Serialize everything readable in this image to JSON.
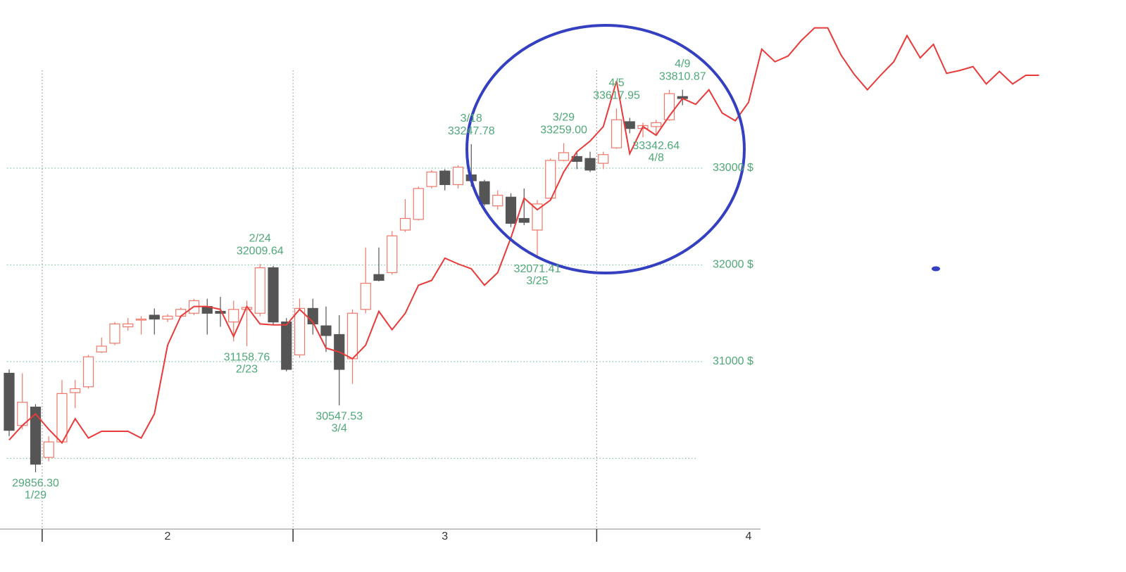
{
  "chart_data": {
    "type": "candlestick",
    "categories": [
      null,
      null,
      null,
      null,
      null,
      null,
      null,
      null,
      null,
      null,
      null,
      null,
      null,
      null,
      null,
      null,
      null,
      null,
      null,
      null,
      null,
      null,
      null,
      null,
      null,
      null,
      null,
      null,
      null,
      null,
      null,
      null,
      null,
      null,
      null,
      null,
      null,
      null,
      null,
      null,
      null,
      null,
      null,
      null,
      null,
      null,
      null,
      null,
      null,
      null,
      null,
      null,
      null,
      null,
      null,
      null,
      null,
      null,
      null,
      null,
      null,
      null,
      null,
      null,
      null,
      null,
      null,
      null,
      null,
      null,
      null,
      null,
      null,
      null,
      null,
      null,
      null,
      null,
      null
    ],
    "open": [
      30880,
      30340,
      30530,
      30010,
      30170,
      30680,
      30740,
      31100,
      31190,
      31360,
      31430,
      31480,
      31440,
      31470,
      31500,
      31570,
      31520,
      31410,
      31540,
      31500,
      31970,
      31410,
      31070,
      31550,
      31370,
      31280,
      31030,
      31540,
      31900,
      31920,
      32360,
      32470,
      32810,
      32970,
      32830,
      32930,
      32860,
      32610,
      32700,
      32480,
      32360,
      32690,
      33080,
      33120,
      33100,
      33050,
      33210,
      33480,
      33410,
      33430,
      33500,
      33740,
      null,
      null,
      null,
      null,
      null,
      null,
      null,
      null,
      null,
      null,
      null,
      null,
      null,
      null,
      null,
      null,
      null,
      null,
      null,
      null,
      null,
      null,
      null,
      null,
      null,
      null,
      null
    ],
    "high": [
      30920,
      30880,
      30560,
      30230,
      30810,
      30810,
      31070,
      31250,
      31410,
      31450,
      31470,
      31550,
      31490,
      31560,
      31650,
      31650,
      31670,
      31630,
      31630,
      32009.64,
      31990,
      31450,
      31650,
      31650,
      31570,
      31480,
      31540,
      32180,
      32180,
      32350,
      32680,
      32810,
      32980,
      32990,
      33030,
      33247.78,
      32880,
      32770,
      32740,
      32790,
      32670,
      33100,
      33259,
      33170,
      33170,
      33170,
      33617.95,
      33520,
      33470,
      33500,
      33810,
      33810.87,
      null,
      null,
      null,
      null,
      null,
      null,
      null,
      null,
      null,
      null,
      null,
      null,
      null,
      null,
      null,
      null,
      null,
      null,
      null,
      null,
      null,
      null,
      null,
      null,
      null,
      null,
      null
    ],
    "low": [
      30230,
      30300,
      29856.3,
      29970,
      30160,
      30520,
      30720,
      31090,
      31170,
      31320,
      31280,
      31280,
      31410,
      31450,
      31480,
      31280,
      31360,
      31210,
      31158.76,
      31470,
      31380,
      30900,
      31040,
      31280,
      31100,
      30547.53,
      30770,
      31500,
      31830,
      31900,
      32340,
      32460,
      32790,
      32770,
      32790,
      32810,
      32610,
      32570,
      32390,
      32410,
      32071.41,
      32670,
      33070,
      32990,
      32960,
      32990,
      33200,
      33360,
      33320,
      33342.64,
      33490,
      33650,
      null,
      null,
      null,
      null,
      null,
      null,
      null,
      null,
      null,
      null,
      null,
      null,
      null,
      null,
      null,
      null,
      null,
      null,
      null,
      null,
      null,
      null,
      null,
      null,
      null,
      null,
      null
    ],
    "close": [
      30290,
      30580,
      29940,
      30170,
      30670,
      30720,
      31050,
      31160,
      31390,
      31390,
      31440,
      31440,
      31470,
      31540,
      31630,
      31500,
      31500,
      31540,
      31560,
      31970,
      31410,
      30920,
      31550,
      31390,
      31270,
      30920,
      31500,
      31810,
      31840,
      32300,
      32480,
      32790,
      32960,
      32830,
      33010,
      32870,
      32630,
      32720,
      32430,
      32440,
      32630,
      33080,
      33160,
      33070,
      32980,
      33140,
      33500,
      33410,
      33440,
      33470,
      33770,
      33720,
      null,
      null,
      null,
      null,
      null,
      null,
      null,
      null,
      null,
      null,
      null,
      null,
      null,
      null,
      null,
      null,
      null,
      null,
      null,
      null,
      null,
      null,
      null,
      null,
      null,
      null,
      null
    ],
    "up_color": "#f07868",
    "down_color": "#555555",
    "line": {
      "color": "#e83a3a",
      "values": [
        30190,
        30340,
        30460,
        30300,
        30160,
        30410,
        30210,
        30280,
        30280,
        30280,
        30210,
        30460,
        31170,
        31470,
        31570,
        31570,
        31540,
        31260,
        31570,
        31390,
        31380,
        31380,
        31540,
        31410,
        31140,
        31100,
        31030,
        31170,
        31520,
        31330,
        31500,
        31790,
        31840,
        32070,
        32010,
        31960,
        31790,
        31920,
        32280,
        32690,
        32570,
        32670,
        32960,
        33170,
        33280,
        33430,
        33900,
        33150,
        33430,
        33340,
        33540,
        33720,
        33660,
        33810,
        33570,
        33490,
        33680,
        34230,
        34100,
        34160,
        34320,
        34450,
        34450,
        34170,
        33970,
        33810,
        33960,
        34100,
        34370,
        34140,
        34280,
        33980,
        34010,
        34050,
        33870,
        34000,
        33870,
        33960,
        33960
      ]
    },
    "ylim": [
      29300,
      34700
    ],
    "yticks": [
      {
        "value": 30000,
        "label": null
      },
      {
        "value": 31000,
        "label": "31000 $"
      },
      {
        "value": 32000,
        "label": "32000 $"
      },
      {
        "value": 33000,
        "label": "33000 $"
      }
    ],
    "grid": true,
    "months": [
      {
        "label": "2",
        "first": 3,
        "last": 21
      },
      {
        "label": "3",
        "first": 22,
        "last": 44
      },
      {
        "label": "4",
        "first": 45,
        "last": 67
      }
    ],
    "annotations": [
      {
        "index": 2,
        "field": "low",
        "date": "1/29",
        "value_label": "29856.30",
        "position": "below"
      },
      {
        "index": 18,
        "field": "low",
        "date": "2/23",
        "value_label": "31158.76",
        "position": "below"
      },
      {
        "index": 19,
        "field": "high",
        "date": "2/24",
        "value_label": "32009.64",
        "position": "above"
      },
      {
        "index": 25,
        "field": "low",
        "date": "3/4",
        "value_label": "30547.53",
        "position": "below"
      },
      {
        "index": 35,
        "field": "high",
        "date": "3/18",
        "value_label": "33247.78",
        "position": "above"
      },
      {
        "index": 40,
        "field": "low",
        "date": "3/25",
        "value_label": "32071.41",
        "position": "below"
      },
      {
        "index": 42,
        "field": "high",
        "date": "3/29",
        "value_label": "33259.00",
        "position": "above"
      },
      {
        "index": 46,
        "field": "high",
        "date": "4/5",
        "value_label": "33617.95",
        "position": "above"
      },
      {
        "index": 49,
        "field": "low",
        "date": "4/8",
        "value_label": "33342.64",
        "position": "below"
      },
      {
        "index": 51,
        "field": "high",
        "date": "4/9",
        "value_label": "33810.87",
        "position": "above"
      }
    ]
  }
}
